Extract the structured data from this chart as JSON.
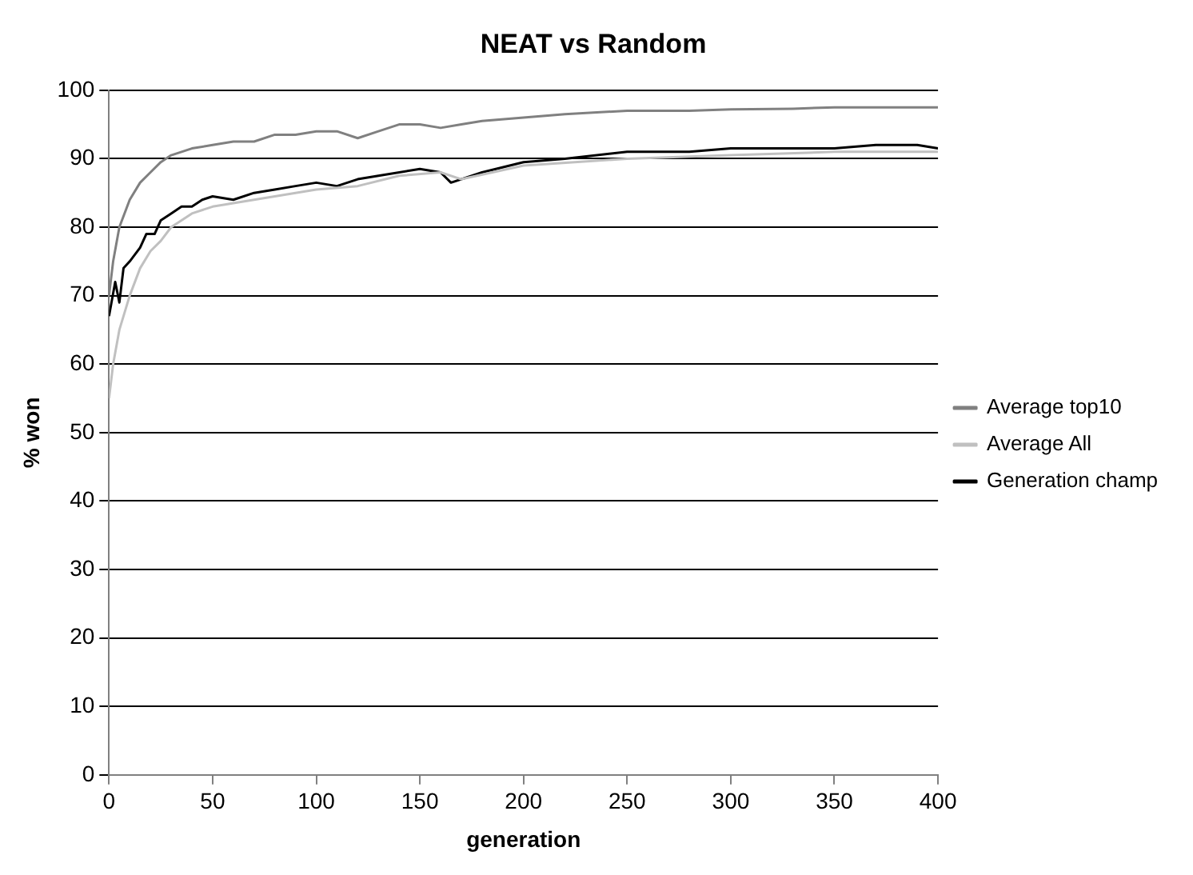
{
  "chart_data": {
    "type": "line",
    "title": "NEAT vs Random",
    "xlabel": "generation",
    "ylabel": "% won",
    "xlim": [
      0,
      400
    ],
    "xticks": [
      0,
      50,
      100,
      150,
      200,
      250,
      300,
      350,
      400
    ],
    "ylim": [
      0,
      100
    ],
    "yticks": [
      0,
      10,
      20,
      30,
      40,
      50,
      60,
      70,
      80,
      90,
      100
    ],
    "grid": "y",
    "legend": "right",
    "marker": "none",
    "line_style": "solid",
    "series": [
      {
        "name": "Average top10",
        "color": "#808080",
        "x": [
          0,
          2,
          5,
          10,
          15,
          20,
          25,
          30,
          40,
          50,
          60,
          70,
          80,
          90,
          100,
          110,
          120,
          130,
          140,
          150,
          160,
          170,
          180,
          200,
          220,
          250,
          280,
          300,
          330,
          350,
          370,
          400
        ],
        "values": [
          70,
          75,
          80,
          84,
          86.5,
          88,
          89.5,
          90.5,
          91.5,
          92,
          92.5,
          92.5,
          93.5,
          93.5,
          94,
          94,
          93,
          94,
          95,
          95,
          94.5,
          95,
          95.5,
          96,
          96.5,
          97,
          97,
          97.2,
          97.3,
          97.5,
          97.5,
          97.5
        ]
      },
      {
        "name": "Average All",
        "color": "#c0c0c0",
        "x": [
          0,
          2,
          5,
          10,
          15,
          20,
          25,
          30,
          40,
          50,
          60,
          80,
          100,
          120,
          140,
          160,
          170,
          200,
          250,
          300,
          350,
          400
        ],
        "values": [
          55,
          60,
          65,
          70,
          74,
          76.5,
          78,
          80,
          82,
          83,
          83.5,
          84.5,
          85.5,
          86,
          87.5,
          88,
          87,
          89,
          90,
          90.5,
          91,
          91
        ]
      },
      {
        "name": "Generation champ",
        "color": "#000000",
        "x": [
          0,
          3,
          5,
          7,
          10,
          15,
          18,
          22,
          25,
          30,
          35,
          40,
          45,
          50,
          60,
          70,
          80,
          90,
          100,
          110,
          120,
          130,
          150,
          160,
          165,
          180,
          200,
          220,
          250,
          280,
          300,
          350,
          370,
          390,
          400
        ],
        "values": [
          67,
          72,
          69,
          74,
          75,
          77,
          79,
          79,
          81,
          82,
          83,
          83,
          84,
          84.5,
          84,
          85,
          85.5,
          86,
          86.5,
          86,
          87,
          87.5,
          88.5,
          88,
          86.5,
          88,
          89.5,
          90,
          91,
          91,
          91.5,
          91.5,
          92,
          92,
          91.5
        ]
      }
    ]
  }
}
